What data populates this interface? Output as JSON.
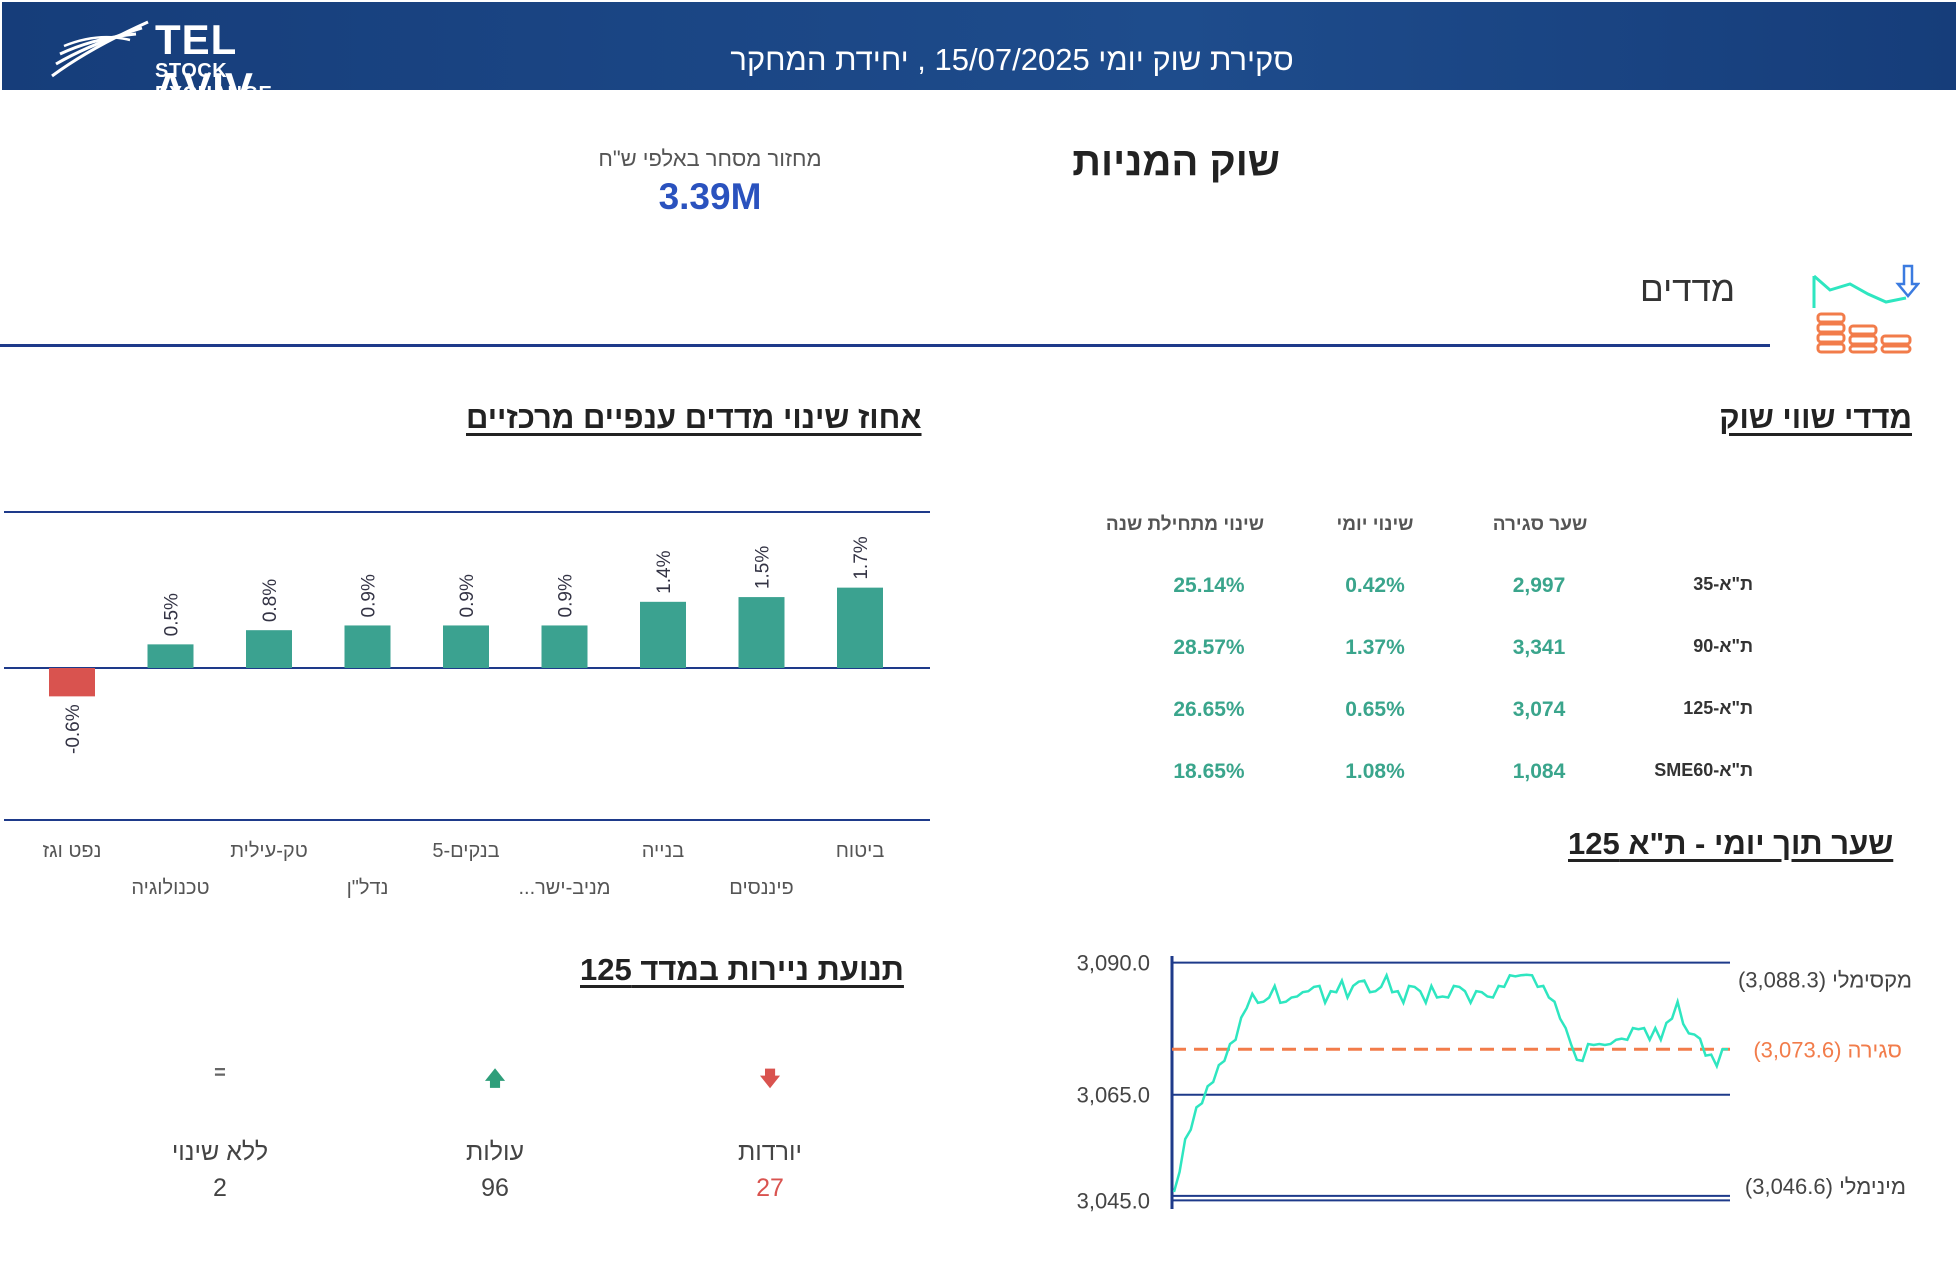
{
  "header": {
    "logo_main": "TEL AVIV",
    "logo_sub": "STOCK EXCHANGE",
    "title": "סקירת שוק יומי 15/07/2025 , יחידת המחקר"
  },
  "equity": {
    "title": "שוק המניות",
    "turnover_label": "מחזור מסחר באלפי ש\"ח",
    "turnover_value": "3.39M"
  },
  "indices": {
    "label": "מדדים",
    "icon": "stock-chart-coins-icon"
  },
  "market_indices": {
    "title": "מדדי שווי שוק",
    "columns": [
      "שער סגירה",
      "שינוי יומי",
      "שינוי מתחילת שנה"
    ],
    "rows": [
      {
        "name": "ת\"א-35",
        "close": "2,997",
        "daily": "0.42%",
        "ytd": "25.14%"
      },
      {
        "name": "ת\"א-90",
        "close": "3,341",
        "daily": "1.37%",
        "ytd": "28.57%"
      },
      {
        "name": "ת\"א-125",
        "close": "3,074",
        "daily": "0.65%",
        "ytd": "26.65%"
      },
      {
        "name": "ת\"א-SME60",
        "close": "1,084",
        "daily": "1.08%",
        "ytd": "18.65%"
      }
    ]
  },
  "sector_chart": {
    "title": "אחוז שינוי מדדים ענפיים מרכזיים",
    "positive_color": "#3ba290",
    "negative_color": "#d9534f"
  },
  "chart_data": [
    {
      "type": "bar",
      "title": "אחוז שינוי מדדים ענפיים מרכזיים",
      "categories": [
        "ביטוח",
        "פיננסים",
        "בנייה",
        "מניב-ישר...",
        "בנקים-5",
        "נדל\"ן",
        "טק-עילית",
        "טכנולוגיה",
        "נפט וגז"
      ],
      "values": [
        1.7,
        1.5,
        1.4,
        0.9,
        0.9,
        0.9,
        0.8,
        0.5,
        -0.6
      ],
      "labels": [
        "1.7%",
        "1.5%",
        "1.4%",
        "0.9%",
        "0.9%",
        "0.9%",
        "0.8%",
        "0.5%",
        "-0.6%"
      ],
      "ylim": [
        -3.3,
        3.3
      ],
      "orientation": "right-to-left"
    },
    {
      "type": "line",
      "title": "שער תוך יומי - ת\"א 125",
      "y_ticks": [
        "3,090.0",
        "3,065.0",
        "3,045.0"
      ],
      "y_tick_values": [
        3090,
        3065,
        3045
      ],
      "ylim": [
        3044.5,
        3090.5
      ],
      "max_label": "מקסימלי (3,088.3)",
      "close_label": "סגירה (3,073.6)",
      "min_label": "מינימלי (3,046.6)",
      "max": 3088.3,
      "close": 3073.6,
      "min": 3046.6,
      "line_color": "#2ee6c0",
      "close_color": "#f27c4a",
      "values": [
        3046.6,
        3051,
        3056,
        3059,
        3062,
        3064,
        3066,
        3068,
        3070,
        3072,
        3074,
        3076,
        3079,
        3082,
        3083.5,
        3083,
        3082,
        3084,
        3085,
        3083,
        3082,
        3084,
        3083,
        3085,
        3084,
        3086,
        3085,
        3083,
        3084,
        3085,
        3086,
        3084,
        3085,
        3087,
        3086,
        3085,
        3084,
        3086,
        3087,
        3085,
        3084,
        3083,
        3085,
        3086,
        3084,
        3083,
        3085,
        3084,
        3083,
        3084,
        3085,
        3086,
        3084,
        3083,
        3084,
        3085,
        3083,
        3084,
        3085,
        3086,
        3087,
        3088,
        3087,
        3088.3,
        3087,
        3086,
        3085,
        3084,
        3082,
        3080,
        3077,
        3075,
        3071,
        3072,
        3074,
        3075,
        3074,
        3075,
        3074,
        3076,
        3075,
        3076,
        3077,
        3078,
        3077,
        3076,
        3077,
        3076,
        3078,
        3080,
        3082,
        3079,
        3076,
        3077,
        3075,
        3073,
        3072,
        3071,
        3073,
        3073.6
      ]
    }
  ],
  "movement": {
    "title": "תנועת ניירות במדד 125",
    "items": [
      {
        "label": "יורדות",
        "value": "27",
        "icon": "arrow-down-icon",
        "color": "#d9534f"
      },
      {
        "label": "עולות",
        "value": "96",
        "icon": "arrow-up-icon",
        "color": "#2e9e7a"
      },
      {
        "label": "ללא שינוי",
        "value": "2",
        "icon": "equals-icon",
        "color": "#666666"
      }
    ]
  }
}
